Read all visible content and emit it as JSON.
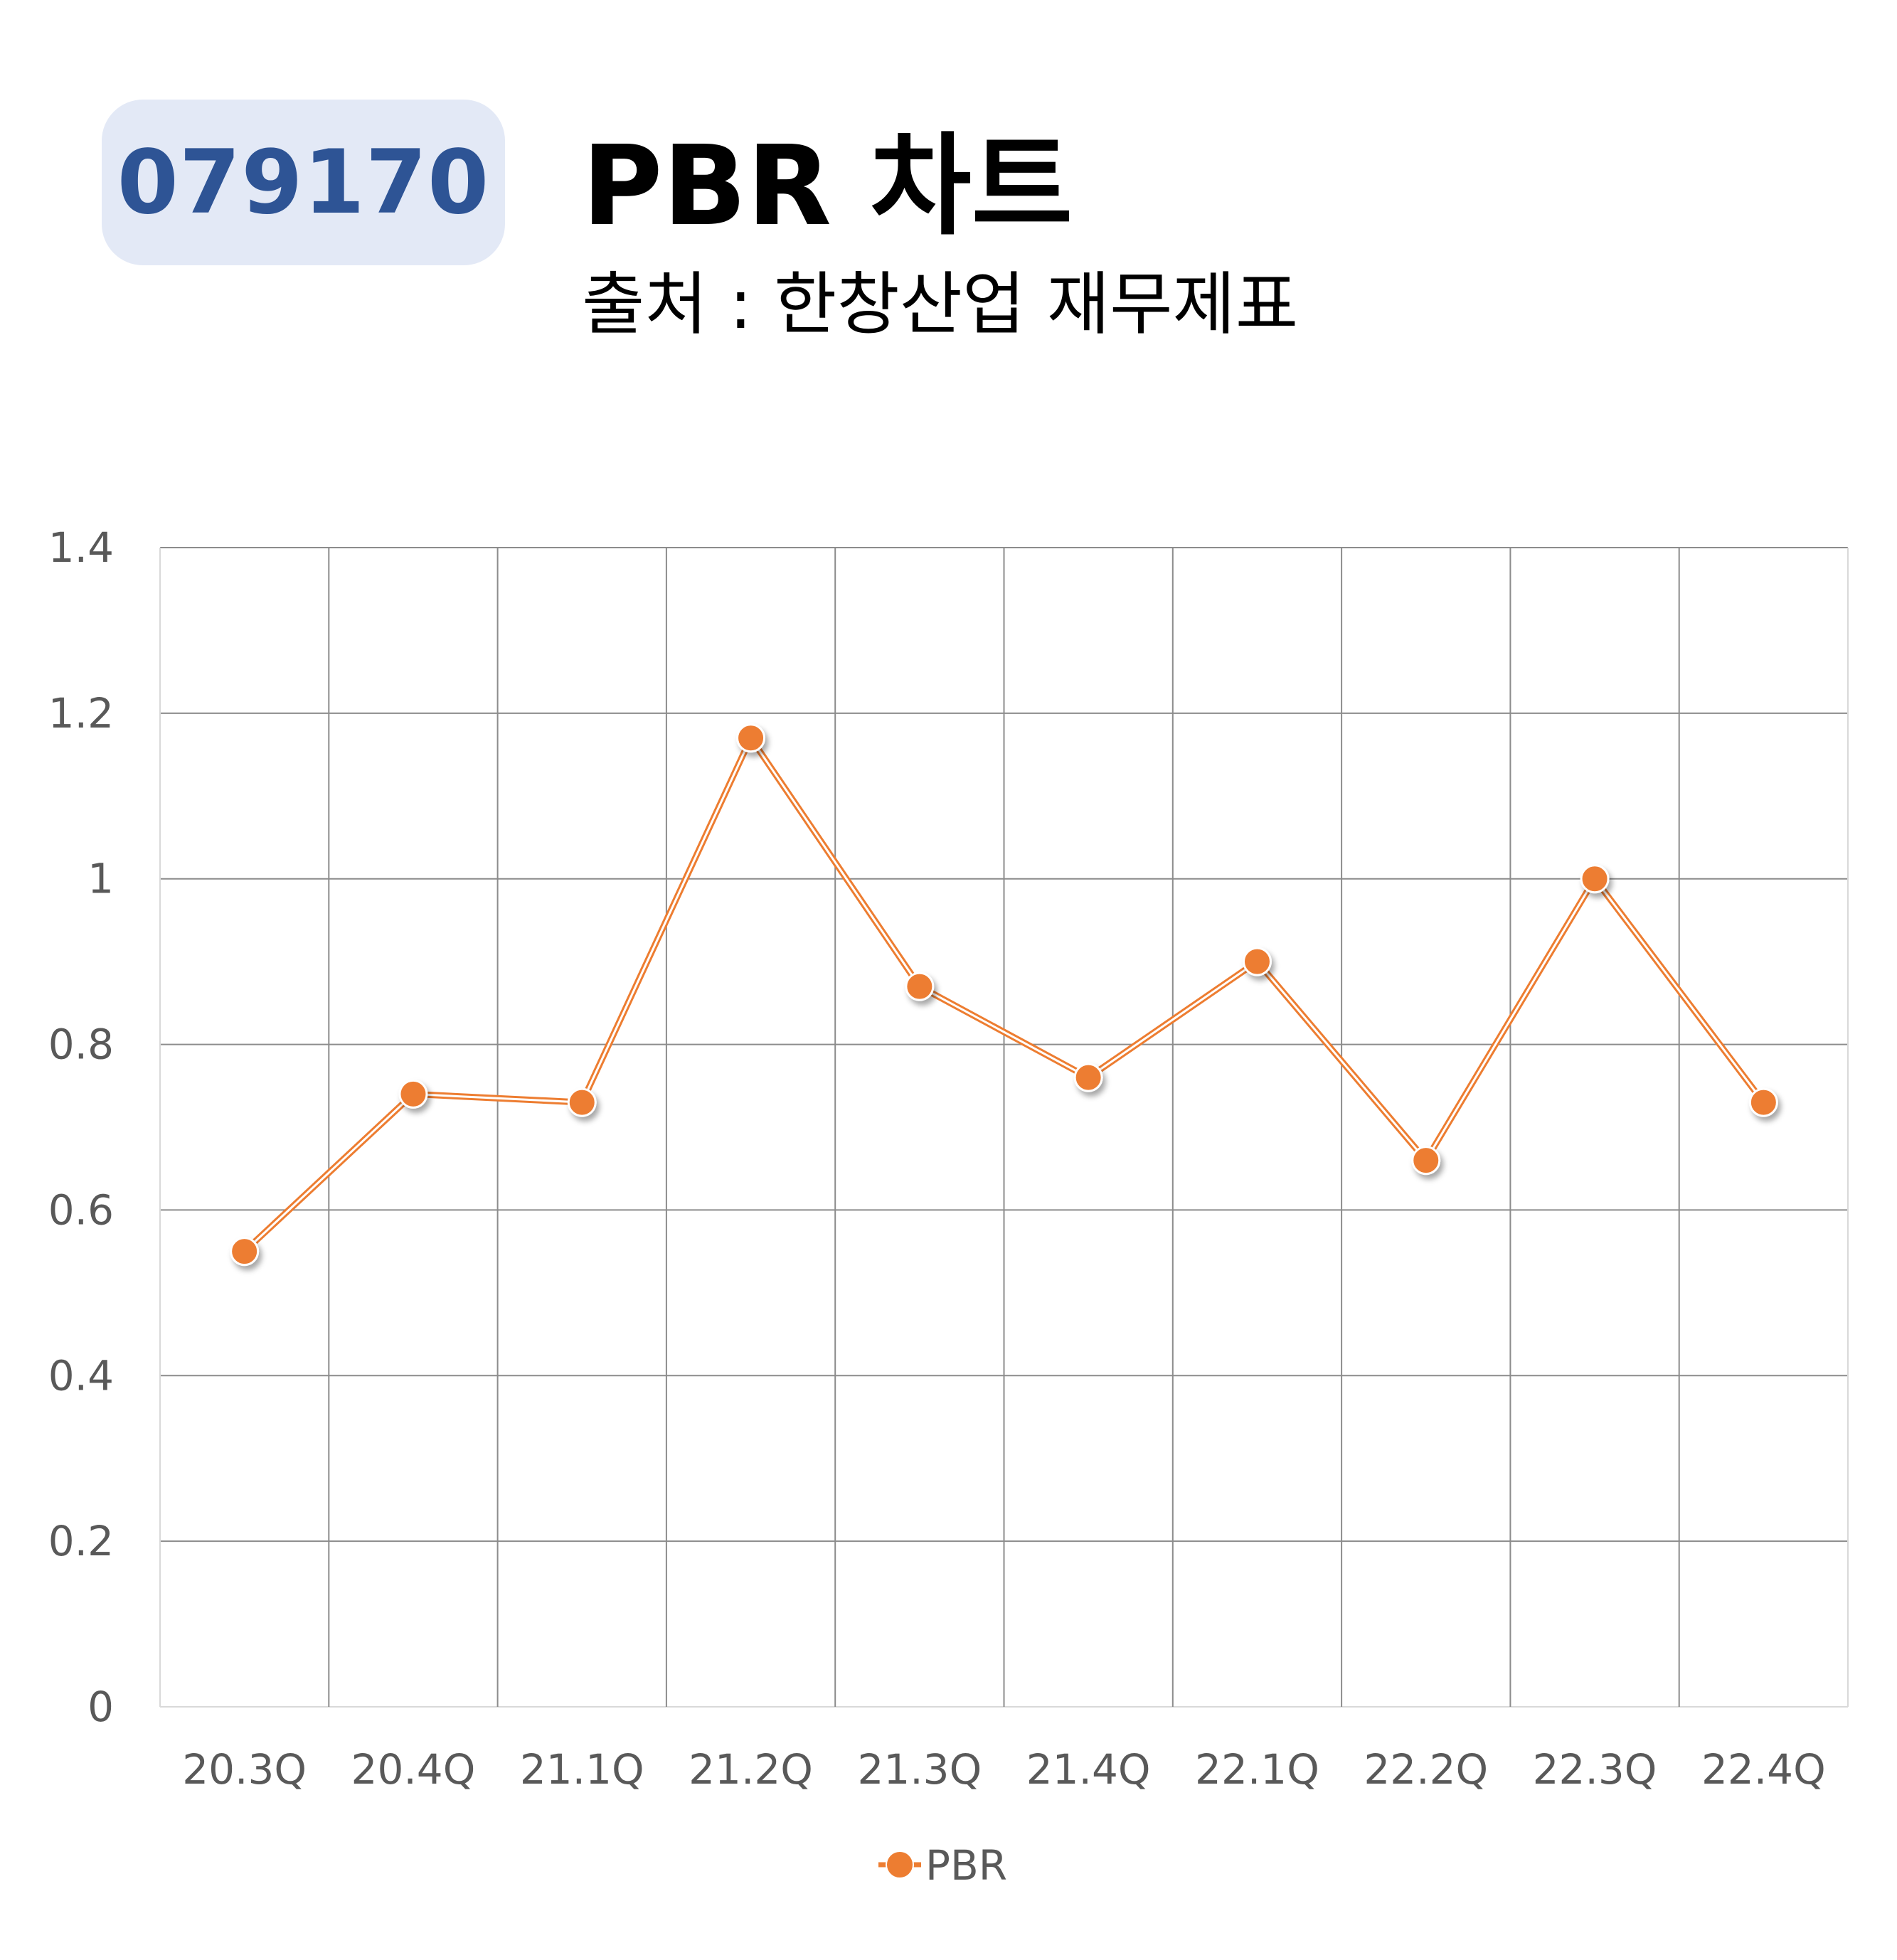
{
  "header": {
    "badge": "079170",
    "title": "PBR 차트",
    "subtitle": "출처 : 한창산업 재무제표"
  },
  "chart_data": {
    "type": "line",
    "categories": [
      "20.3Q",
      "20.4Q",
      "21.1Q",
      "21.2Q",
      "21.3Q",
      "21.4Q",
      "22.1Q",
      "22.2Q",
      "22.3Q",
      "22.4Q"
    ],
    "series": [
      {
        "name": "PBR",
        "values": [
          0.55,
          0.74,
          0.73,
          1.17,
          0.87,
          0.76,
          0.9,
          0.66,
          1.0,
          0.73
        ],
        "color": "#ed7d31"
      }
    ],
    "yticks": [
      "0",
      "0.2",
      "0.4",
      "0.6",
      "0.8",
      "1",
      "1.2",
      "1.4"
    ],
    "ylim": [
      0,
      1.4
    ],
    "grid": true,
    "legend": "bottom-center"
  }
}
